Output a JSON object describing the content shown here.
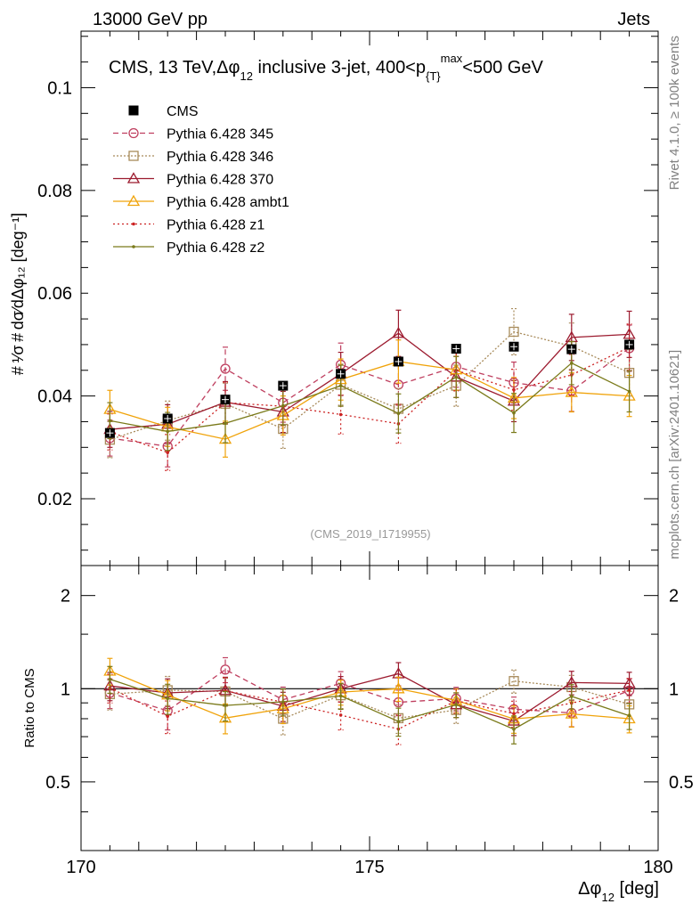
{
  "header": {
    "left": "13000 GeV pp",
    "right": "Jets"
  },
  "side_labels": {
    "rivet": "Rivet 4.1.0, ≥ 100k events",
    "mcplots": "mcplots.cern.ch [arXiv:2401.10621]"
  },
  "watermark": "(CMS_2019_I1719955)",
  "chart_data": {
    "type": "line",
    "title": "CMS, 13 TeV,Δφ",
    "title_sub": "12",
    "title_rest": " inclusive 3-jet, 400<p",
    "title_sub2": "{T}",
    "title_sup2": "max",
    "title_end": "<500 GeV",
    "ylabel_main": "# ¹⁄σ # dσ⁄dΔφ₁₂ [deg⁻¹]",
    "ylabel_ratio": "Ratio to CMS",
    "xlabel": "Δφ",
    "xlabel_sub": "12",
    "xlabel_unit": " [deg]",
    "xlim": [
      170,
      180
    ],
    "ylim_main": [
      0.007,
      0.111
    ],
    "ylim_ratio": [
      0.3,
      2.5
    ],
    "yticks_main": [
      "0.02",
      "0.04",
      "0.06",
      "0.08",
      "0.1"
    ],
    "yticks_ratio": [
      "0.5",
      "1",
      "2"
    ],
    "xticks": [
      "170",
      "175",
      "180"
    ],
    "x": [
      170.5,
      171.5,
      172.5,
      173.5,
      174.5,
      175.5,
      176.5,
      177.5,
      178.5,
      179.5
    ],
    "data": {
      "name": "CMS",
      "values": [
        0.0328,
        0.0356,
        0.0393,
        0.042,
        0.0443,
        0.0467,
        0.0492,
        0.0496,
        0.0491,
        0.05
      ]
    },
    "series": [
      {
        "name": "Pythia 6.428 345",
        "color": "#bf3f5f",
        "dash": "6,4",
        "marker": "circle",
        "values": [
          0.0318,
          0.0302,
          0.0453,
          0.0387,
          0.0461,
          0.0422,
          0.0457,
          0.0426,
          0.041,
          0.0493
        ],
        "errors": [
          0.0035,
          0.004,
          0.0042,
          0.0038,
          0.0042,
          0.004,
          0.004,
          0.004,
          0.004,
          0.0045
        ]
      },
      {
        "name": "Pythia 6.428 346",
        "color": "#a88b5b",
        "dash": "2,2",
        "marker": "square",
        "values": [
          0.0315,
          0.0352,
          0.0385,
          0.0336,
          0.0422,
          0.0375,
          0.042,
          0.0525,
          0.0497,
          0.0445
        ],
        "errors": [
          0.0035,
          0.0038,
          0.004,
          0.0038,
          0.004,
          0.004,
          0.004,
          0.0045,
          0.0045,
          0.0045
        ]
      },
      {
        "name": "Pythia 6.428 370",
        "color": "#9c1b2f",
        "dash": "",
        "marker": "triangle",
        "values": [
          0.0335,
          0.0345,
          0.0388,
          0.0369,
          0.0443,
          0.0522,
          0.0437,
          0.039,
          0.0514,
          0.052
        ],
        "errors": [
          0.0035,
          0.0038,
          0.004,
          0.004,
          0.0042,
          0.0045,
          0.004,
          0.004,
          0.0045,
          0.0045
        ]
      },
      {
        "name": "Pythia 6.428 ambt1",
        "color": "#f0a30a",
        "dash": "",
        "marker": "triangle",
        "values": [
          0.0374,
          0.034,
          0.0316,
          0.0362,
          0.0432,
          0.0467,
          0.0451,
          0.0396,
          0.0407,
          0.04
        ],
        "errors": [
          0.0037,
          0.0038,
          0.0035,
          0.0038,
          0.004,
          0.0042,
          0.004,
          0.004,
          0.0038,
          0.004
        ]
      },
      {
        "name": "Pythia 6.428 z1",
        "color": "#cc2222",
        "dash": "2,3",
        "marker": "dot",
        "values": [
          0.033,
          0.029,
          0.0387,
          0.038,
          0.0364,
          0.0346,
          0.045,
          0.0412,
          0.0441,
          0.0495
        ],
        "errors": [
          0.0035,
          0.0035,
          0.004,
          0.0038,
          0.0038,
          0.0038,
          0.004,
          0.004,
          0.004,
          0.0045
        ]
      },
      {
        "name": "Pythia 6.428 z2",
        "color": "#7a7a1a",
        "dash": "",
        "marker": "dot",
        "values": [
          0.0352,
          0.0331,
          0.0347,
          0.0381,
          0.042,
          0.0366,
          0.0437,
          0.0367,
          0.0464,
          0.0409
        ],
        "errors": [
          0.0035,
          0.0037,
          0.0038,
          0.0038,
          0.004,
          0.0038,
          0.004,
          0.0038,
          0.0042,
          0.004
        ]
      }
    ]
  }
}
